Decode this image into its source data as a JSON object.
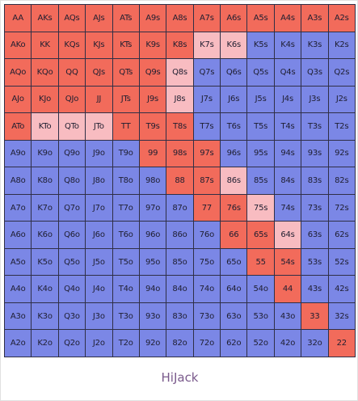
{
  "caption": "HiJack",
  "colors": {
    "open": "#f26b5b",
    "mixed": "#f8bcc1",
    "fold": "#7b87e6"
  },
  "chart_data": {
    "type": "heatmap",
    "ranks": [
      "A",
      "K",
      "Q",
      "J",
      "T",
      "9",
      "8",
      "7",
      "6",
      "5",
      "4",
      "3",
      "2"
    ],
    "cells": [
      [
        [
          "AA",
          "open"
        ],
        [
          "AKs",
          "open"
        ],
        [
          "AQs",
          "open"
        ],
        [
          "AJs",
          "open"
        ],
        [
          "ATs",
          "open"
        ],
        [
          "A9s",
          "open"
        ],
        [
          "A8s",
          "open"
        ],
        [
          "A7s",
          "open"
        ],
        [
          "A6s",
          "open"
        ],
        [
          "A5s",
          "open"
        ],
        [
          "A4s",
          "open"
        ],
        [
          "A3s",
          "open"
        ],
        [
          "A2s",
          "open"
        ]
      ],
      [
        [
          "AKo",
          "open"
        ],
        [
          "KK",
          "open"
        ],
        [
          "KQs",
          "open"
        ],
        [
          "KJs",
          "open"
        ],
        [
          "KTs",
          "open"
        ],
        [
          "K9s",
          "open"
        ],
        [
          "K8s",
          "open"
        ],
        [
          "K7s",
          "mixed"
        ],
        [
          "K6s",
          "mixed"
        ],
        [
          "K5s",
          "fold"
        ],
        [
          "K4s",
          "fold"
        ],
        [
          "K3s",
          "fold"
        ],
        [
          "K2s",
          "fold"
        ]
      ],
      [
        [
          "AQo",
          "open"
        ],
        [
          "KQo",
          "open"
        ],
        [
          "QQ",
          "open"
        ],
        [
          "QJs",
          "open"
        ],
        [
          "QTs",
          "open"
        ],
        [
          "Q9s",
          "open"
        ],
        [
          "Q8s",
          "mixed"
        ],
        [
          "Q7s",
          "fold"
        ],
        [
          "Q6s",
          "fold"
        ],
        [
          "Q5s",
          "fold"
        ],
        [
          "Q4s",
          "fold"
        ],
        [
          "Q3s",
          "fold"
        ],
        [
          "Q2s",
          "fold"
        ]
      ],
      [
        [
          "AJo",
          "open"
        ],
        [
          "KJo",
          "open"
        ],
        [
          "QJo",
          "open"
        ],
        [
          "JJ",
          "open"
        ],
        [
          "JTs",
          "open"
        ],
        [
          "J9s",
          "open"
        ],
        [
          "J8s",
          "mixed"
        ],
        [
          "J7s",
          "fold"
        ],
        [
          "J6s",
          "fold"
        ],
        [
          "J5s",
          "fold"
        ],
        [
          "J4s",
          "fold"
        ],
        [
          "J3s",
          "fold"
        ],
        [
          "J2s",
          "fold"
        ]
      ],
      [
        [
          "ATo",
          "open"
        ],
        [
          "KTo",
          "mixed"
        ],
        [
          "QTo",
          "mixed"
        ],
        [
          "JTo",
          "mixed"
        ],
        [
          "TT",
          "open"
        ],
        [
          "T9s",
          "open"
        ],
        [
          "T8s",
          "open"
        ],
        [
          "T7s",
          "fold"
        ],
        [
          "T6s",
          "fold"
        ],
        [
          "T5s",
          "fold"
        ],
        [
          "T4s",
          "fold"
        ],
        [
          "T3s",
          "fold"
        ],
        [
          "T2s",
          "fold"
        ]
      ],
      [
        [
          "A9o",
          "fold"
        ],
        [
          "K9o",
          "fold"
        ],
        [
          "Q9o",
          "fold"
        ],
        [
          "J9o",
          "fold"
        ],
        [
          "T9o",
          "fold"
        ],
        [
          "99",
          "open"
        ],
        [
          "98s",
          "open"
        ],
        [
          "97s",
          "open"
        ],
        [
          "96s",
          "fold"
        ],
        [
          "95s",
          "fold"
        ],
        [
          "94s",
          "fold"
        ],
        [
          "93s",
          "fold"
        ],
        [
          "92s",
          "fold"
        ]
      ],
      [
        [
          "A8o",
          "fold"
        ],
        [
          "K8o",
          "fold"
        ],
        [
          "Q8o",
          "fold"
        ],
        [
          "J8o",
          "fold"
        ],
        [
          "T8o",
          "fold"
        ],
        [
          "98o",
          "fold"
        ],
        [
          "88",
          "open"
        ],
        [
          "87s",
          "open"
        ],
        [
          "86s",
          "mixed"
        ],
        [
          "85s",
          "fold"
        ],
        [
          "84s",
          "fold"
        ],
        [
          "83s",
          "fold"
        ],
        [
          "82s",
          "fold"
        ]
      ],
      [
        [
          "A7o",
          "fold"
        ],
        [
          "K7o",
          "fold"
        ],
        [
          "Q7o",
          "fold"
        ],
        [
          "J7o",
          "fold"
        ],
        [
          "T7o",
          "fold"
        ],
        [
          "97o",
          "fold"
        ],
        [
          "87o",
          "fold"
        ],
        [
          "77",
          "open"
        ],
        [
          "76s",
          "open"
        ],
        [
          "75s",
          "mixed"
        ],
        [
          "74s",
          "fold"
        ],
        [
          "73s",
          "fold"
        ],
        [
          "72s",
          "fold"
        ]
      ],
      [
        [
          "A6o",
          "fold"
        ],
        [
          "K6o",
          "fold"
        ],
        [
          "Q6o",
          "fold"
        ],
        [
          "J6o",
          "fold"
        ],
        [
          "T6o",
          "fold"
        ],
        [
          "96o",
          "fold"
        ],
        [
          "86o",
          "fold"
        ],
        [
          "76o",
          "fold"
        ],
        [
          "66",
          "open"
        ],
        [
          "65s",
          "open"
        ],
        [
          "64s",
          "mixed"
        ],
        [
          "63s",
          "fold"
        ],
        [
          "62s",
          "fold"
        ]
      ],
      [
        [
          "A5o",
          "fold"
        ],
        [
          "K5o",
          "fold"
        ],
        [
          "Q5o",
          "fold"
        ],
        [
          "J5o",
          "fold"
        ],
        [
          "T5o",
          "fold"
        ],
        [
          "95o",
          "fold"
        ],
        [
          "85o",
          "fold"
        ],
        [
          "75o",
          "fold"
        ],
        [
          "65o",
          "fold"
        ],
        [
          "55",
          "open"
        ],
        [
          "54s",
          "open"
        ],
        [
          "53s",
          "fold"
        ],
        [
          "52s",
          "fold"
        ]
      ],
      [
        [
          "A4o",
          "fold"
        ],
        [
          "K4o",
          "fold"
        ],
        [
          "Q4o",
          "fold"
        ],
        [
          "J4o",
          "fold"
        ],
        [
          "T4o",
          "fold"
        ],
        [
          "94o",
          "fold"
        ],
        [
          "84o",
          "fold"
        ],
        [
          "74o",
          "fold"
        ],
        [
          "64o",
          "fold"
        ],
        [
          "54o",
          "fold"
        ],
        [
          "44",
          "open"
        ],
        [
          "43s",
          "fold"
        ],
        [
          "42s",
          "fold"
        ]
      ],
      [
        [
          "A3o",
          "fold"
        ],
        [
          "K3o",
          "fold"
        ],
        [
          "Q3o",
          "fold"
        ],
        [
          "J3o",
          "fold"
        ],
        [
          "T3o",
          "fold"
        ],
        [
          "93o",
          "fold"
        ],
        [
          "83o",
          "fold"
        ],
        [
          "73o",
          "fold"
        ],
        [
          "63o",
          "fold"
        ],
        [
          "53o",
          "fold"
        ],
        [
          "43o",
          "fold"
        ],
        [
          "33",
          "open"
        ],
        [
          "32s",
          "fold"
        ]
      ],
      [
        [
          "A2o",
          "fold"
        ],
        [
          "K2o",
          "fold"
        ],
        [
          "Q2o",
          "fold"
        ],
        [
          "J2o",
          "fold"
        ],
        [
          "T2o",
          "fold"
        ],
        [
          "92o",
          "fold"
        ],
        [
          "82o",
          "fold"
        ],
        [
          "72o",
          "fold"
        ],
        [
          "62o",
          "fold"
        ],
        [
          "52o",
          "fold"
        ],
        [
          "42o",
          "fold"
        ],
        [
          "32o",
          "fold"
        ],
        [
          "22",
          "open"
        ]
      ]
    ]
  }
}
